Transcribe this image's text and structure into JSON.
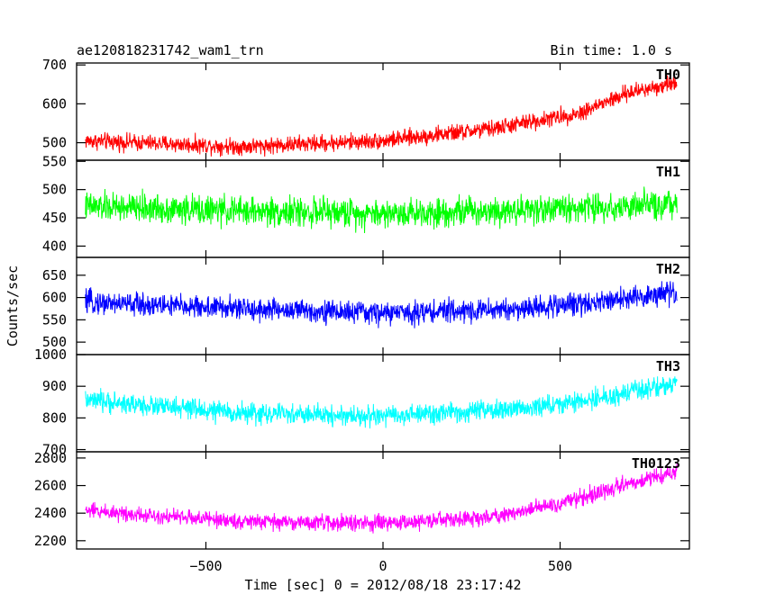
{
  "title": "ae120818231742_wam1_trn",
  "bin_time": "Bin time: 1.0 s",
  "chart_data": {
    "type": "line",
    "xlabel": "Time [sec] 0 = 2012/08/18 23:17:42",
    "ylabel": "Counts/sec",
    "xlim": [
      -865,
      865
    ],
    "x_range": [
      -840,
      830
    ],
    "x_ticks": [
      -500,
      0,
      500
    ],
    "x_tick_labels": [
      "−500",
      "0",
      "500"
    ],
    "grid": false,
    "panels": [
      {
        "name": "TH0",
        "color": "#ff0000",
        "ylim": [
          455,
          705
        ],
        "y_ticks": [
          500,
          600,
          700
        ],
        "trend": [
          [
            -840,
            505
          ],
          [
            -400,
            490
          ],
          [
            0,
            505
          ],
          [
            300,
            535
          ],
          [
            550,
            575
          ],
          [
            700,
            630
          ],
          [
            830,
            655
          ]
        ],
        "noise_amplitude": 32
      },
      {
        "name": "TH1",
        "color": "#00ff00",
        "ylim": [
          380,
          552
        ],
        "y_ticks": [
          400,
          450,
          500,
          550
        ],
        "trend": [
          [
            -840,
            470
          ],
          [
            -400,
            462
          ],
          [
            0,
            458
          ],
          [
            400,
            465
          ],
          [
            700,
            470
          ],
          [
            830,
            473
          ]
        ],
        "noise_amplitude": 38
      },
      {
        "name": "TH2",
        "color": "#0000ff",
        "ylim": [
          472,
          690
        ],
        "y_ticks": [
          500,
          550,
          600,
          650
        ],
        "trend": [
          [
            -840,
            590
          ],
          [
            -400,
            575
          ],
          [
            0,
            565
          ],
          [
            400,
            575
          ],
          [
            650,
            595
          ],
          [
            830,
            610
          ]
        ],
        "noise_amplitude": 38
      },
      {
        "name": "TH3",
        "color": "#00ffff",
        "ylim": [
          693,
          1000
        ],
        "y_ticks": [
          700,
          800,
          900,
          1000
        ],
        "trend": [
          [
            -840,
            855
          ],
          [
            -400,
            815
          ],
          [
            0,
            805
          ],
          [
            350,
            825
          ],
          [
            550,
            850
          ],
          [
            700,
            880
          ],
          [
            830,
            910
          ]
        ],
        "noise_amplitude": 48
      },
      {
        "name": "TH0123",
        "color": "#ff00ff",
        "ylim": [
          2140,
          2845
        ],
        "y_ticks": [
          2200,
          2400,
          2600,
          2800
        ],
        "trend": [
          [
            -840,
            2420
          ],
          [
            -400,
            2340
          ],
          [
            0,
            2325
          ],
          [
            300,
            2370
          ],
          [
            500,
            2470
          ],
          [
            650,
            2580
          ],
          [
            830,
            2700
          ]
        ],
        "noise_amplitude": 85
      }
    ]
  }
}
